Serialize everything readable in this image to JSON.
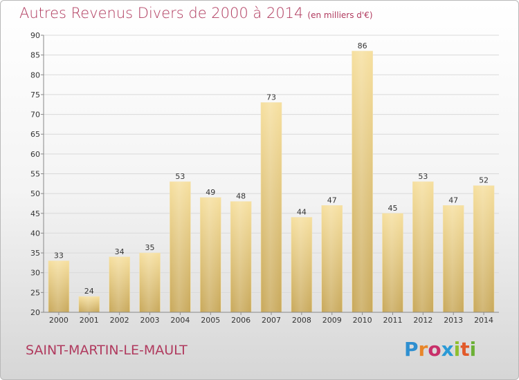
{
  "chart_data": {
    "type": "bar",
    "title": "Autres Revenus Divers de 2000 à 2014",
    "unit_note": "(en milliers d'€)",
    "categories": [
      "2000",
      "2001",
      "2002",
      "2003",
      "2004",
      "2005",
      "2006",
      "2007",
      "2008",
      "2009",
      "2010",
      "2011",
      "2012",
      "2013",
      "2014"
    ],
    "values": [
      33,
      24,
      34,
      35,
      53,
      49,
      48,
      73,
      44,
      47,
      86,
      45,
      53,
      47,
      52
    ],
    "ylim": [
      20,
      90
    ],
    "yticks": [
      20,
      25,
      30,
      35,
      40,
      45,
      50,
      55,
      60,
      65,
      70,
      75,
      80,
      85,
      90
    ],
    "xlabel": "",
    "ylabel": "",
    "grid": true,
    "bar_color": "#e8cd8a"
  },
  "footer": {
    "city": "SAINT-MARTIN-LE-MAULT",
    "logo_letters": [
      "P",
      "r",
      "o",
      "x",
      "i",
      "t",
      "i"
    ],
    "logo_colors": [
      "#2e8fd0",
      "#e8862a",
      "#c8306a",
      "#2a9ad6",
      "#8fbf2e",
      "#e25a2a",
      "#6cb036"
    ]
  },
  "colors": {
    "title": "#b03a5e",
    "gridline": "#d9d9d9",
    "axis": "#888888"
  }
}
